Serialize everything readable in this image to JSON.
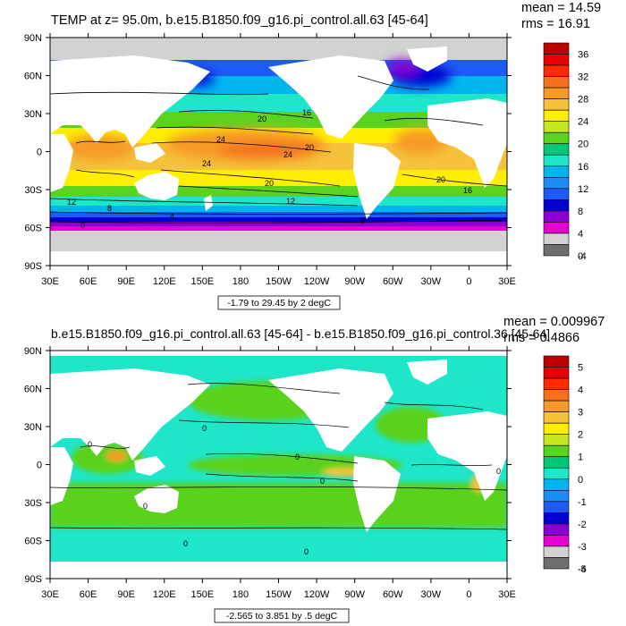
{
  "chart_data": [
    {
      "type": "heatmap",
      "title": "TEMP at z=  95.0m, b.e15.B1850.f09_g16.pi_control.all.63 [45-64]",
      "stats": {
        "mean": "mean = 14.59",
        "rms": "rms = 16.91"
      },
      "range_label": "-1.79 to 29.45 by 2 degC",
      "x_ticks": [
        "30E",
        "60E",
        "90E",
        "120E",
        "150E",
        "180",
        "150W",
        "120W",
        "90W",
        "60W",
        "30W",
        "0",
        "30E"
      ],
      "y_ticks": [
        "90N",
        "60N",
        "30N",
        "0",
        "30S",
        "60S",
        "90S"
      ],
      "xlim": [
        30,
        390
      ],
      "ylim": [
        -90,
        90
      ],
      "colorbar": {
        "labels": [
          "36",
          "32",
          "28",
          "24",
          "20",
          "16",
          "12",
          "8",
          "4",
          "0",
          "-4"
        ],
        "colors": [
          "#bf0000",
          "#e60000",
          "#ff2a00",
          "#f5701e",
          "#f59a28",
          "#f5c23a",
          "#ffee00",
          "#c8e61e",
          "#5ad21e",
          "#00c878",
          "#1ee6c8",
          "#00b4f0",
          "#1e8cf5",
          "#1e5af5",
          "#0000d2",
          "#8c00d2",
          "#e600d2",
          "#d2d2d2",
          "#6e6e6e"
        ],
        "gap_labels": [
          1,
          1,
          1,
          1,
          1,
          1,
          1,
          1,
          1,
          1,
          1
        ]
      },
      "contour_labels": [
        "24",
        "24",
        "24",
        "20",
        "20",
        "20",
        "16",
        "12",
        "8",
        "4",
        "0",
        "16",
        "20",
        "12",
        "8"
      ]
    },
    {
      "type": "heatmap",
      "title": "b.e15.B1850.f09_g16.pi_control.all.63 [45-64] - b.e15.B1850.f09_g16.pi_control.36 [45-64]",
      "stats": {
        "mean": "mean = 0.009967",
        "rms": "rms = 0.4866"
      },
      "range_label": "-2.565 to 3.851 by .5 degC",
      "x_ticks": [
        "30E",
        "60E",
        "90E",
        "120E",
        "150E",
        "180",
        "150W",
        "120W",
        "90W",
        "60W",
        "30W",
        "0",
        "30E"
      ],
      "y_ticks": [
        "90N",
        "60N",
        "30N",
        "0",
        "30S",
        "60S",
        "90S"
      ],
      "xlim": [
        30,
        390
      ],
      "ylim": [
        -90,
        90
      ],
      "colorbar": {
        "labels": [
          "5",
          "4",
          "3",
          "2",
          "1",
          "0",
          "-1",
          "-2",
          "-3",
          "-4",
          "-5"
        ],
        "colors": [
          "#bf0000",
          "#e60000",
          "#ff2a00",
          "#f5701e",
          "#f59a28",
          "#f5c23a",
          "#ffee00",
          "#c8e61e",
          "#5ad21e",
          "#00c878",
          "#1ee6c8",
          "#00b4f0",
          "#1e8cf5",
          "#1e5af5",
          "#0000d2",
          "#8c00d2",
          "#e600d2",
          "#d2d2d2",
          "#6e6e6e"
        ]
      },
      "contour_labels": [
        "0",
        "0",
        "0",
        "0",
        "0",
        "0",
        "0",
        "0"
      ]
    }
  ]
}
